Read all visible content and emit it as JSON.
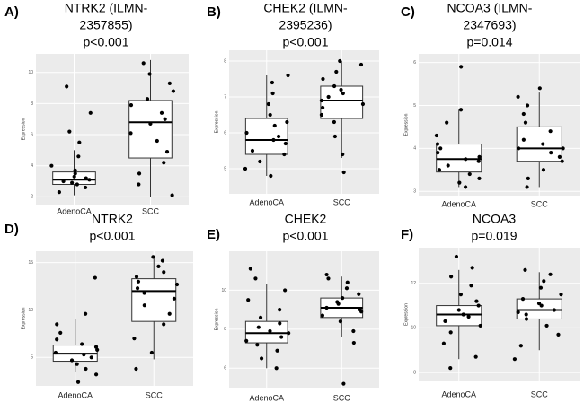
{
  "chart_data": [
    {
      "type": "box",
      "panel_label": "A)",
      "title_lines": [
        "NTRK2 (ILMN-",
        "2357855)",
        "p<0.001"
      ],
      "y_label": "Expression",
      "categories": [
        "AdenoCA",
        "SCC"
      ],
      "ylim": [
        1.5,
        11.2
      ],
      "yticks": [
        2,
        4,
        6,
        8,
        10
      ],
      "boxes": [
        {
          "min": 2.1,
          "q1": 2.8,
          "median": 3.1,
          "q3": 3.6,
          "max": 5.0,
          "points": [
            2.3,
            2.6,
            2.8,
            2.9,
            3.0,
            3.1,
            3.2,
            3.3,
            3.5,
            3.7,
            4.0,
            4.6,
            5.5,
            6.2,
            7.4,
            9.1
          ]
        },
        {
          "min": 2.0,
          "q1": 4.5,
          "median": 6.8,
          "q3": 8.2,
          "max": 10.8,
          "points": [
            2.1,
            2.8,
            3.5,
            4.2,
            4.9,
            5.6,
            6.1,
            6.7,
            7.0,
            7.4,
            7.9,
            8.3,
            8.8,
            9.3,
            9.9,
            10.6
          ]
        }
      ]
    },
    {
      "type": "box",
      "panel_label": "B)",
      "title_lines": [
        "CHEK2 (ILMN-",
        "2395236)",
        "p<0.001"
      ],
      "y_label": "Expression",
      "categories": [
        "AdenoCA",
        "SCC"
      ],
      "ylim": [
        4.3,
        8.3
      ],
      "yticks": [
        5,
        6,
        7,
        8
      ],
      "boxes": [
        {
          "min": 4.8,
          "q1": 5.4,
          "median": 5.8,
          "q3": 6.4,
          "max": 7.6,
          "points": [
            4.8,
            5.0,
            5.2,
            5.4,
            5.5,
            5.7,
            5.8,
            5.9,
            6.0,
            6.2,
            6.3,
            6.5,
            6.8,
            7.1,
            7.4,
            7.6
          ]
        },
        {
          "min": 5.3,
          "q1": 6.4,
          "median": 6.9,
          "q3": 7.3,
          "max": 8.0,
          "points": [
            4.9,
            5.4,
            5.9,
            6.3,
            6.5,
            6.7,
            6.8,
            6.9,
            7.0,
            7.1,
            7.2,
            7.3,
            7.5,
            7.7,
            7.9,
            8.0
          ]
        }
      ]
    },
    {
      "type": "box",
      "panel_label": "C)",
      "title_lines": [
        "NCOA3 (ILMN-",
        "2347693)",
        "p=0.014"
      ],
      "y_label": "Expression",
      "categories": [
        "AdenoCA",
        "SCC"
      ],
      "ylim": [
        2.9,
        6.2
      ],
      "yticks": [
        3,
        4,
        5,
        6
      ],
      "boxes": [
        {
          "min": 3.1,
          "q1": 3.45,
          "median": 3.75,
          "q3": 4.1,
          "max": 4.9,
          "points": [
            3.1,
            3.2,
            3.3,
            3.4,
            3.5,
            3.6,
            3.7,
            3.75,
            3.8,
            3.9,
            4.0,
            4.1,
            4.3,
            4.6,
            4.9,
            5.9
          ]
        },
        {
          "min": 3.1,
          "q1": 3.7,
          "median": 4.0,
          "q3": 4.5,
          "max": 5.3,
          "points": [
            3.1,
            3.3,
            3.5,
            3.7,
            3.8,
            3.9,
            4.0,
            4.0,
            4.1,
            4.2,
            4.4,
            4.6,
            4.8,
            5.0,
            5.2,
            5.4
          ]
        }
      ]
    },
    {
      "type": "box",
      "panel_label": "D)",
      "title_lines": [
        "NTRK2",
        "p<0.001"
      ],
      "y_label": "Expression",
      "categories": [
        "AdenoCA",
        "SCC"
      ],
      "ylim": [
        2.0,
        16.2
      ],
      "yticks": [
        5,
        10,
        15
      ],
      "boxes": [
        {
          "min": 3.5,
          "q1": 4.6,
          "median": 5.4,
          "q3": 6.3,
          "max": 9.0,
          "points": [
            2.4,
            3.2,
            3.8,
            4.3,
            4.7,
            5.0,
            5.3,
            5.5,
            5.8,
            6.1,
            6.4,
            6.9,
            7.6,
            8.5,
            9.6,
            13.4
          ]
        },
        {
          "min": 4.8,
          "q1": 8.8,
          "median": 12.0,
          "q3": 13.3,
          "max": 15.6,
          "points": [
            3.8,
            5.5,
            7.0,
            8.5,
            9.6,
            10.5,
            11.2,
            11.8,
            12.3,
            12.7,
            13.0,
            13.5,
            14.0,
            14.6,
            15.2,
            15.6
          ]
        }
      ]
    },
    {
      "type": "box",
      "panel_label": "E)",
      "title_lines": [
        "CHEK2",
        "p<0.001"
      ],
      "y_label": "Expression",
      "categories": [
        "AdenoCA",
        "SCC"
      ],
      "ylim": [
        5.0,
        12.0
      ],
      "yticks": [
        6,
        8,
        10
      ],
      "boxes": [
        {
          "min": 6.0,
          "q1": 7.3,
          "median": 7.8,
          "q3": 8.4,
          "max": 10.3,
          "points": [
            6.0,
            6.5,
            6.9,
            7.2,
            7.4,
            7.6,
            7.8,
            7.9,
            8.1,
            8.3,
            8.6,
            9.0,
            9.5,
            10.0,
            10.6,
            11.1
          ]
        },
        {
          "min": 7.6,
          "q1": 8.6,
          "median": 9.1,
          "q3": 9.6,
          "max": 10.7,
          "points": [
            5.2,
            7.3,
            7.9,
            8.4,
            8.7,
            8.9,
            9.0,
            9.1,
            9.3,
            9.4,
            9.6,
            9.8,
            10.1,
            10.4,
            10.6,
            10.8
          ]
        }
      ]
    },
    {
      "type": "box",
      "panel_label": "F)",
      "title_lines": [
        "NCOA3",
        "p=0.019"
      ],
      "y_label": "Expression",
      "categories": [
        "AdenoCA",
        "SCC"
      ],
      "ylim": [
        7.6,
        13.6
      ],
      "yticks": [
        8,
        10,
        12
      ],
      "boxes": [
        {
          "min": 8.6,
          "q1": 10.1,
          "median": 10.6,
          "q3": 11.0,
          "max": 12.6,
          "points": [
            8.2,
            8.7,
            9.3,
            9.8,
            10.1,
            10.3,
            10.5,
            10.6,
            10.8,
            11.0,
            11.2,
            11.5,
            11.9,
            12.3,
            12.7,
            13.2
          ]
        },
        {
          "min": 9.0,
          "q1": 10.4,
          "median": 10.8,
          "q3": 11.3,
          "max": 12.5,
          "points": [
            8.6,
            9.2,
            9.7,
            10.1,
            10.4,
            10.6,
            10.7,
            10.8,
            11.0,
            11.1,
            11.3,
            11.5,
            11.8,
            12.1,
            12.4,
            12.6
          ]
        }
      ]
    }
  ]
}
